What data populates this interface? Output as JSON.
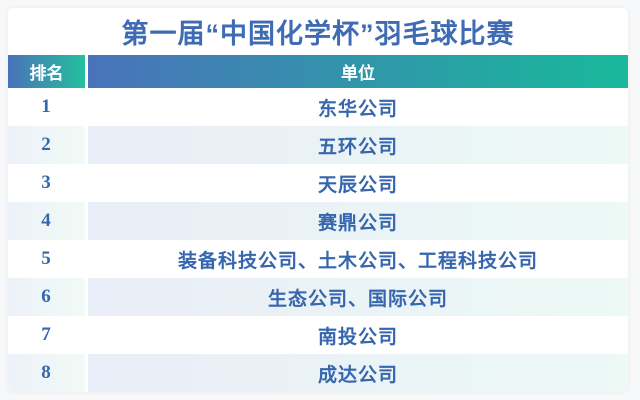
{
  "title": "第一届“中国化学杯”羽毛球比赛",
  "table": {
    "headers": {
      "rank": "排名",
      "unit": "单位"
    },
    "rows": [
      {
        "rank": "1",
        "unit": "东华公司"
      },
      {
        "rank": "2",
        "unit": "五环公司"
      },
      {
        "rank": "3",
        "unit": "天辰公司"
      },
      {
        "rank": "4",
        "unit": "赛鼎公司"
      },
      {
        "rank": "5",
        "unit": "装备科技公司、土木公司、工程科技公司"
      },
      {
        "rank": "6",
        "unit": "生态公司、国际公司"
      },
      {
        "rank": "7",
        "unit": "南投公司"
      },
      {
        "rank": "8",
        "unit": "成达公司"
      }
    ]
  },
  "colors": {
    "title_text": "#3e6bb4",
    "header_gradient_start": "#4a72ba",
    "header_gradient_end": "#18b99b",
    "header_text": "#ffffff",
    "body_text": "#3566ae",
    "even_row_tint_blue": "#e9edf7",
    "even_row_tint_green": "#ecf9f5",
    "card_background": "#ffffff"
  }
}
